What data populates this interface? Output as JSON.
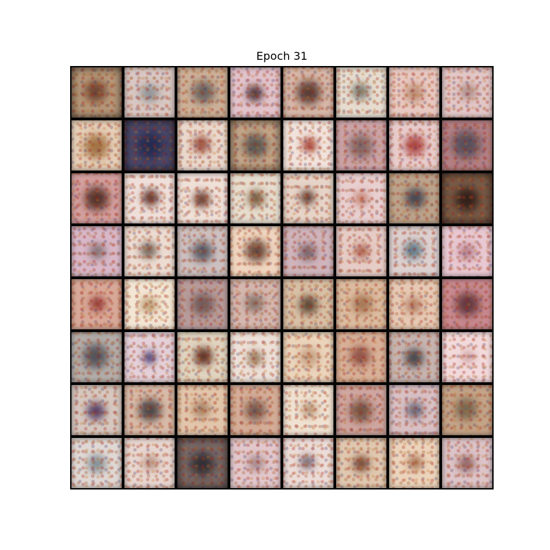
{
  "title": "Epoch 31",
  "grid": {
    "rows": 8,
    "cols": 8,
    "tiles": [
      {
        "bg": "#b89a7c",
        "blob": "#6a3e2c",
        "s": 0.55,
        "dark": true
      },
      {
        "bg": "#d8c7c3",
        "blob": "#8a8f93",
        "s": 0.45
      },
      {
        "bg": "#ccb098",
        "blob": "#5e5a5a",
        "s": 0.55
      },
      {
        "bg": "#e1c3cc",
        "blob": "#3b2328",
        "s": 0.4
      },
      {
        "bg": "#d6b7a8",
        "blob": "#4d3029",
        "s": 0.6
      },
      {
        "bg": "#e6ddd0",
        "blob": "#6c6c62",
        "s": 0.4
      },
      {
        "bg": "#e8c9c2",
        "blob": "#b8876c",
        "s": 0.45
      },
      {
        "bg": "#e2c7c7",
        "blob": "#a98884",
        "s": 0.4
      },
      {
        "bg": "#e6cfb8",
        "blob": "#9a6a3a",
        "s": 0.6
      },
      {
        "bg": "#4c4a6c",
        "blob": "#20294f",
        "s": 0.7,
        "dark": true
      },
      {
        "bg": "#ead8cc",
        "blob": "#8d3f30",
        "s": 0.4
      },
      {
        "bg": "#c4a88c",
        "blob": "#51504d",
        "s": 0.6,
        "dark": true
      },
      {
        "bg": "#f1e3dc",
        "blob": "#9e3024",
        "s": 0.35
      },
      {
        "bg": "#cba4a8",
        "blob": "#7a6060",
        "s": 0.6
      },
      {
        "bg": "#e8cccc",
        "blob": "#a63838",
        "s": 0.5
      },
      {
        "bg": "#b48086",
        "blob": "#4e4a58",
        "s": 0.7
      },
      {
        "bg": "#d4a0a0",
        "blob": "#47281f",
        "s": 0.6
      },
      {
        "bg": "#efdfda",
        "blob": "#4d2018",
        "s": 0.4
      },
      {
        "bg": "#efe0d8",
        "blob": "#5a2a1c",
        "s": 0.4
      },
      {
        "bg": "#e6ddcf",
        "blob": "#6a4a2a",
        "s": 0.4
      },
      {
        "bg": "#e6d4c8",
        "blob": "#4e2a1e",
        "s": 0.35
      },
      {
        "bg": "#e8cfd0",
        "blob": "#c07a68",
        "s": 0.35
      },
      {
        "bg": "#bca48c",
        "blob": "#3b3c4a",
        "s": 0.5
      },
      {
        "bg": "#7a5c48",
        "blob": "#2c1a14",
        "s": 0.6,
        "dark": true
      },
      {
        "bg": "#d8b8c8",
        "blob": "#7e6c6e",
        "s": 0.4
      },
      {
        "bg": "#ecdcd2",
        "blob": "#6b5a4e",
        "s": 0.4
      },
      {
        "bg": "#cdc0c0",
        "blob": "#4c4e58",
        "s": 0.5
      },
      {
        "bg": "#f0d6c0",
        "blob": "#5a3a2e",
        "s": 0.55
      },
      {
        "bg": "#cfb4bc",
        "blob": "#6e5860",
        "s": 0.4
      },
      {
        "bg": "#e6ccc6",
        "blob": "#a45440",
        "s": 0.35
      },
      {
        "bg": "#ddd0d0",
        "blob": "#507080",
        "s": 0.45
      },
      {
        "bg": "#e8c8d2",
        "blob": "#b07a88",
        "s": 0.4
      },
      {
        "bg": "#d8a898",
        "blob": "#8a2a2a",
        "s": 0.35
      },
      {
        "bg": "#f3e6d4",
        "blob": "#b8966c",
        "s": 0.4
      },
      {
        "bg": "#b89c9c",
        "blob": "#6a5454",
        "s": 0.55
      },
      {
        "bg": "#d4b8b0",
        "blob": "#7d6a62",
        "s": 0.45
      },
      {
        "bg": "#d8c0a6",
        "blob": "#4e3a2a",
        "s": 0.45
      },
      {
        "bg": "#dcbca0",
        "blob": "#a07050",
        "s": 0.5
      },
      {
        "bg": "#e6c9b4",
        "blob": "#b07860",
        "s": 0.4
      },
      {
        "bg": "#c88a90",
        "blob": "#5a3038",
        "s": 0.6
      },
      {
        "bg": "#b4aeaa",
        "blob": "#4a4a52",
        "s": 0.6
      },
      {
        "bg": "#e4d0d8",
        "blob": "#2a2060",
        "s": 0.3
      },
      {
        "bg": "#e0d4c0",
        "blob": "#4e1e12",
        "s": 0.45
      },
      {
        "bg": "#ece0d8",
        "blob": "#8a6a4a",
        "s": 0.35
      },
      {
        "bg": "#ead4bc",
        "blob": "#c09878",
        "s": 0.45
      },
      {
        "bg": "#d8b098",
        "blob": "#8a4a40",
        "s": 0.5
      },
      {
        "bg": "#c6b4b0",
        "blob": "#383a40",
        "s": 0.45
      },
      {
        "bg": "#f2dadc",
        "blob": "#c89a9a",
        "s": 0.3
      },
      {
        "bg": "#d6c8c0",
        "blob": "#48305a",
        "s": 0.45
      },
      {
        "bg": "#d8baa8",
        "blob": "#3e3a3e",
        "s": 0.55
      },
      {
        "bg": "#e2c6ac",
        "blob": "#a07c60",
        "s": 0.4
      },
      {
        "bg": "#d4ad98",
        "blob": "#6a5048",
        "s": 0.5
      },
      {
        "bg": "#f0e2d2",
        "blob": "#b08a6a",
        "s": 0.35
      },
      {
        "bg": "#cfa6a0",
        "blob": "#6a4a3a",
        "s": 0.55
      },
      {
        "bg": "#d8c0c4",
        "blob": "#5a5a70",
        "s": 0.4
      },
      {
        "bg": "#c4a488",
        "blob": "#70604a",
        "s": 0.55
      },
      {
        "bg": "#e0d8d4",
        "blob": "#7a8890",
        "s": 0.45
      },
      {
        "bg": "#e8d6d0",
        "blob": "#b08878",
        "s": 0.35
      },
      {
        "bg": "#7a6a68",
        "blob": "#2c2a30",
        "s": 0.6,
        "dark": true
      },
      {
        "bg": "#e2c8cc",
        "blob": "#a08084",
        "s": 0.4
      },
      {
        "bg": "#ecdcd8",
        "blob": "#6a5a68",
        "s": 0.35
      },
      {
        "bg": "#e0c8b0",
        "blob": "#6a3a28",
        "s": 0.4
      },
      {
        "bg": "#ecd4bc",
        "blob": "#a06848",
        "s": 0.35
      },
      {
        "bg": "#dcc4c8",
        "blob": "#8a5a58",
        "s": 0.4
      }
    ]
  }
}
